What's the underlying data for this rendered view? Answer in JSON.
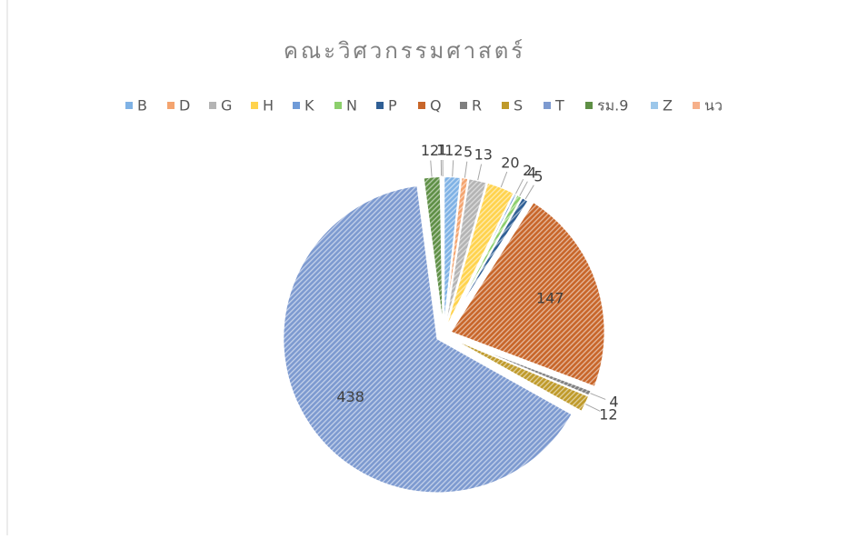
{
  "chart_data": {
    "type": "pie",
    "title": "คณะวิศวกรรมศาสตร์",
    "categories": [
      "B",
      "D",
      "G",
      "H",
      "K",
      "N",
      "P",
      "Q",
      "R",
      "S",
      "T",
      "รม.9",
      "Z",
      "นว"
    ],
    "values": [
      12,
      5,
      13,
      20,
      2,
      4,
      5,
      147,
      4,
      12,
      438,
      12,
      1,
      1
    ],
    "colors": [
      "#7fb2e5",
      "#f4a46f",
      "#b4b4b4",
      "#ffd34d",
      "#6f9bd8",
      "#8ccf6c",
      "#2f5f95",
      "#c8662a",
      "#7f7f7f",
      "#bf9a2a",
      "#7d9ad0",
      "#5e8f45",
      "#9cc7ea",
      "#f6b08a"
    ],
    "legend": "top"
  }
}
